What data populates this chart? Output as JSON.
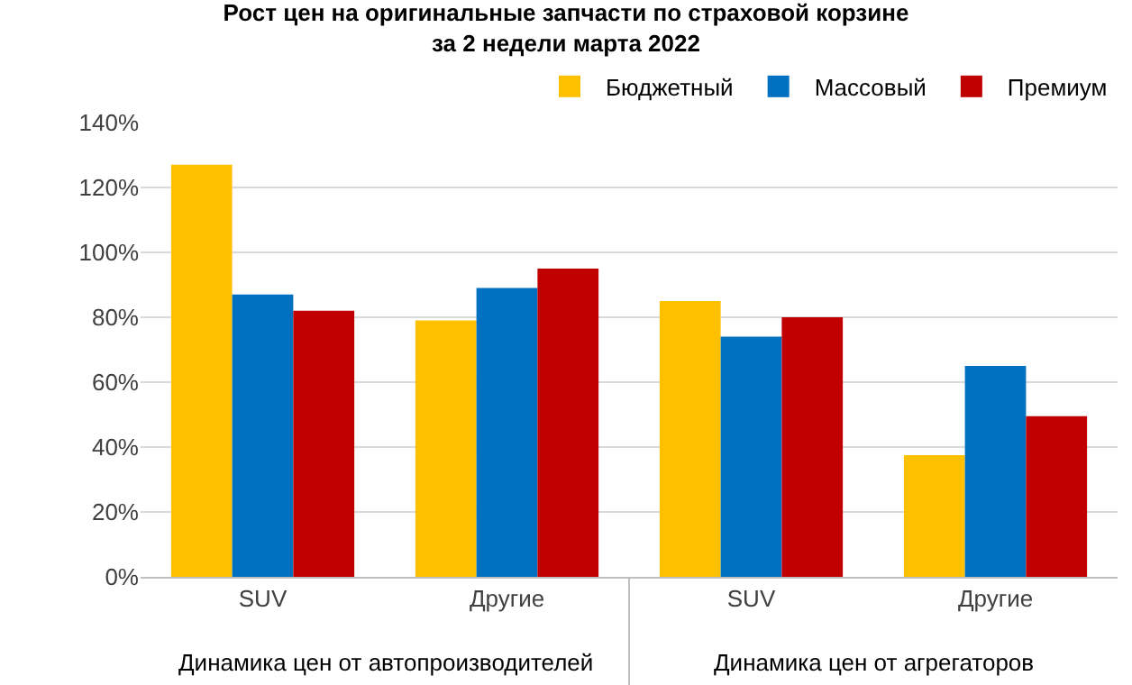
{
  "chart_data": {
    "type": "bar",
    "title": "Рост цен на оригинальные запчасти по страховой корзине\nза 2 недели марта 2022",
    "categories": [
      "SUV",
      "Другие",
      "SUV",
      "Другие"
    ],
    "series": [
      {
        "name": "Бюджетный",
        "color": "#ffc000",
        "values": [
          127,
          79,
          85,
          37.5
        ]
      },
      {
        "name": "Массовый",
        "color": "#0070c0",
        "values": [
          87,
          89,
          74,
          65
        ]
      },
      {
        "name": "Премиум",
        "color": "#c00000",
        "values": [
          82,
          95,
          80,
          49.5
        ]
      }
    ],
    "annotations": [
      "Динамика цен от автопроизводителей",
      "Динамика цен от агрегаторов"
    ],
    "ylim": [
      0,
      140
    ],
    "yticks": [
      {
        "value": 0,
        "label": "0%"
      },
      {
        "value": 20,
        "label": "20%"
      },
      {
        "value": 40,
        "label": "40%"
      },
      {
        "value": 60,
        "label": "60%"
      },
      {
        "value": 80,
        "label": "80%"
      },
      {
        "value": 100,
        "label": "100%"
      },
      {
        "value": 120,
        "label": "120%"
      },
      {
        "value": 140,
        "label": "140%"
      }
    ],
    "grid": "y",
    "legend": "top right"
  }
}
